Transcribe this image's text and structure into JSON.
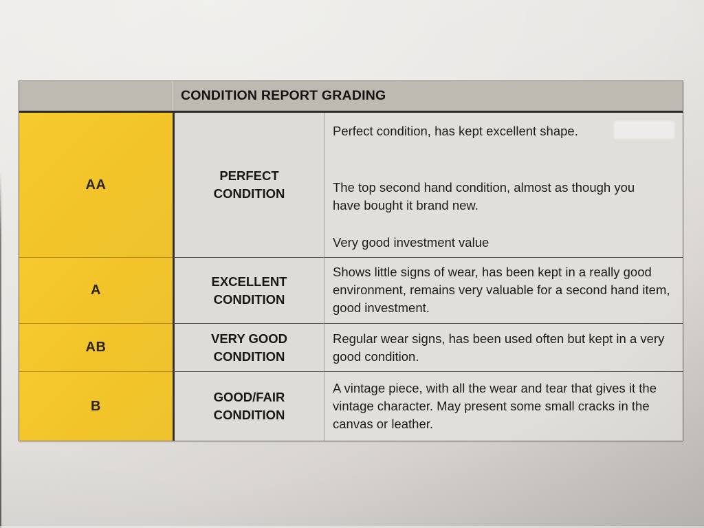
{
  "table": {
    "title": "CONDITION REPORT GRADING",
    "rows": [
      {
        "grade": "AA",
        "condition": "PERFECT CONDITION",
        "description_paragraphs": [
          "Perfect condition, has kept excellent shape.",
          "The top second hand condition, almost as though you have bought it brand new.",
          "Very good investment value"
        ]
      },
      {
        "grade": "A",
        "condition": "EXCELLENT CONDITION",
        "description_paragraphs": [
          "Shows little signs of wear, has been kept in a really good environment, remains very valuable for a second hand item, good investment."
        ]
      },
      {
        "grade": "AB",
        "condition": "VERY GOOD CONDITION",
        "description_paragraphs": [
          "Regular wear signs, has been used often but kept in a very good condition."
        ]
      },
      {
        "grade": "B",
        "condition": "GOOD/FAIR CONDITION",
        "description_paragraphs": [
          "A vintage piece, with all the wear and tear that gives it the vintage character. May present some small cracks in the canvas or leather."
        ]
      }
    ]
  },
  "colors": {
    "grade_column_yellow": "#f2c42a",
    "header_gray": "#bfbab1",
    "cell_gray": "#dedcd7",
    "paper_background": "#e8e6e3",
    "text": "#1d1c1a"
  }
}
